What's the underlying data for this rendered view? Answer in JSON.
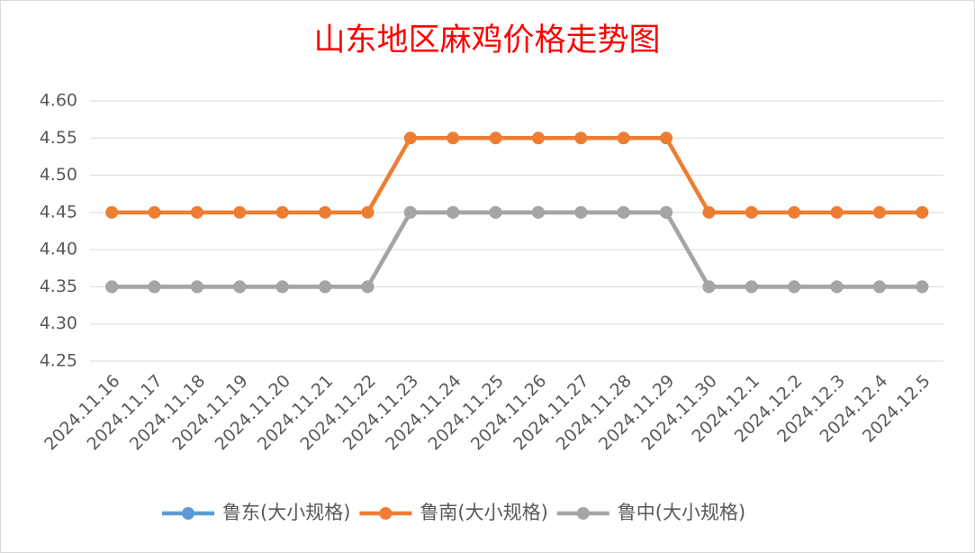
{
  "chart_data": {
    "type": "line",
    "title": "山东地区麻鸡价格走势图",
    "categories": [
      "2024.11.16",
      "2024.11.17",
      "2024.11.18",
      "2024.11.19",
      "2024.11.20",
      "2024.11.21",
      "2024.11.22",
      "2024.11.23",
      "2024.11.24",
      "2024.11.25",
      "2024.11.26",
      "2024.11.27",
      "2024.11.28",
      "2024.11.29",
      "2024.11.30",
      "2024.12.1",
      "2024.12.2",
      "2024.12.3",
      "2024.12.4",
      "2024.12.5"
    ],
    "series": [
      {
        "name": "鲁东(大小规格)",
        "color": "#5b9bd5",
        "values": [
          4.35,
          4.35,
          4.35,
          4.35,
          4.35,
          4.35,
          4.35,
          4.45,
          4.45,
          4.45,
          4.45,
          4.45,
          4.45,
          4.45,
          4.35,
          4.35,
          4.35,
          4.35,
          4.35,
          4.35
        ]
      },
      {
        "name": "鲁南(大小规格)",
        "color": "#ed7d31",
        "values": [
          4.45,
          4.45,
          4.45,
          4.45,
          4.45,
          4.45,
          4.45,
          4.55,
          4.55,
          4.55,
          4.55,
          4.55,
          4.55,
          4.55,
          4.45,
          4.45,
          4.45,
          4.45,
          4.45,
          4.45
        ]
      },
      {
        "name": "鲁中(大小规格)",
        "color": "#a5a5a5",
        "values": [
          4.35,
          4.35,
          4.35,
          4.35,
          4.35,
          4.35,
          4.35,
          4.45,
          4.45,
          4.45,
          4.45,
          4.45,
          4.45,
          4.45,
          4.35,
          4.35,
          4.35,
          4.35,
          4.35,
          4.35
        ]
      }
    ],
    "ylim": [
      4.25,
      4.6
    ],
    "yticks": [
      4.25,
      {
        "value": 4.3,
        "label": "4.30"
      },
      4.35,
      {
        "value": 4.4,
        "label": "4.40"
      },
      4.45,
      {
        "value": 4.5,
        "label": "4.50"
      },
      4.55,
      {
        "value": 4.6,
        "label": "4.60"
      }
    ],
    "grid": true,
    "legend": "bottom"
  }
}
